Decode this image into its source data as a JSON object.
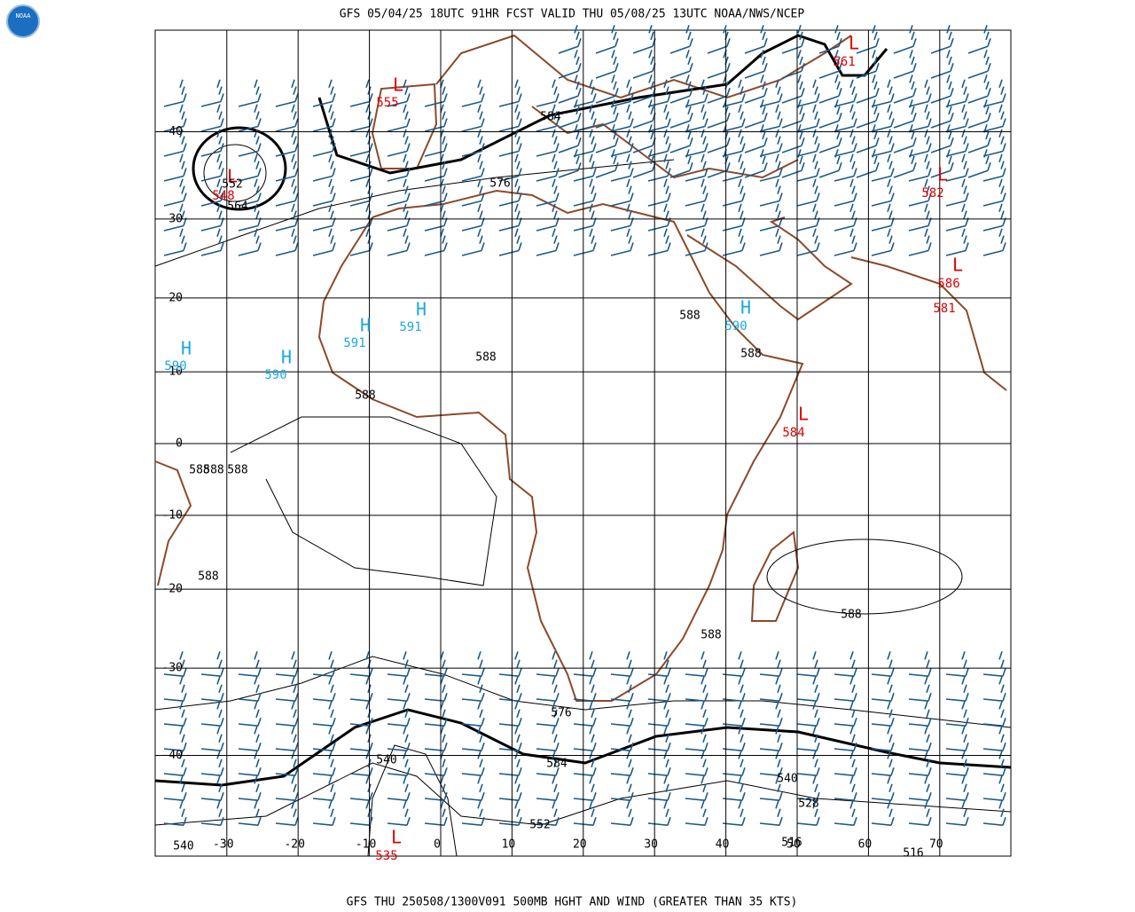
{
  "header": {
    "title": "GFS 05/04/25 18UTC 91HR FCST VALID THU 05/08/25 13UTC NOAA/NWS/NCEP",
    "logo": "NOAA"
  },
  "map": {
    "lat_labels": [
      40,
      30,
      20,
      10,
      0,
      -10,
      -20,
      -30,
      -40
    ],
    "lon_labels": [
      -30,
      -20,
      -10,
      0,
      10,
      20,
      30,
      40,
      50,
      60,
      70
    ],
    "centers": [
      {
        "symbol": "L",
        "value": "561"
      },
      {
        "symbol": "L",
        "value": "555"
      },
      {
        "symbol": "L",
        "value": "548"
      },
      {
        "symbol": "L",
        "value": "582"
      },
      {
        "symbol": "L",
        "value": "586"
      },
      {
        "symbol": "H",
        "value": "591"
      },
      {
        "symbol": "H",
        "value": "591"
      },
      {
        "symbol": "H",
        "value": "590"
      },
      {
        "symbol": "H",
        "value": "590"
      },
      {
        "symbol": "H",
        "value": "590"
      },
      {
        "symbol": "L",
        "value": "584"
      },
      {
        "symbol": "L",
        "value": "535"
      }
    ],
    "extra_low_label": "581",
    "contour_labels": [
      "584",
      "576",
      "588",
      "588",
      "588",
      "588",
      "588",
      "588",
      "588",
      "588",
      "588",
      "588",
      "576",
      "584",
      "540",
      "552",
      "540",
      "528",
      "516",
      "516",
      "540",
      "552",
      "564"
    ]
  },
  "footer": {
    "caption": "GFS THU 250508/1300V091 500MB HGHT AND WIND (GREATER THAN 35 KTS)"
  }
}
